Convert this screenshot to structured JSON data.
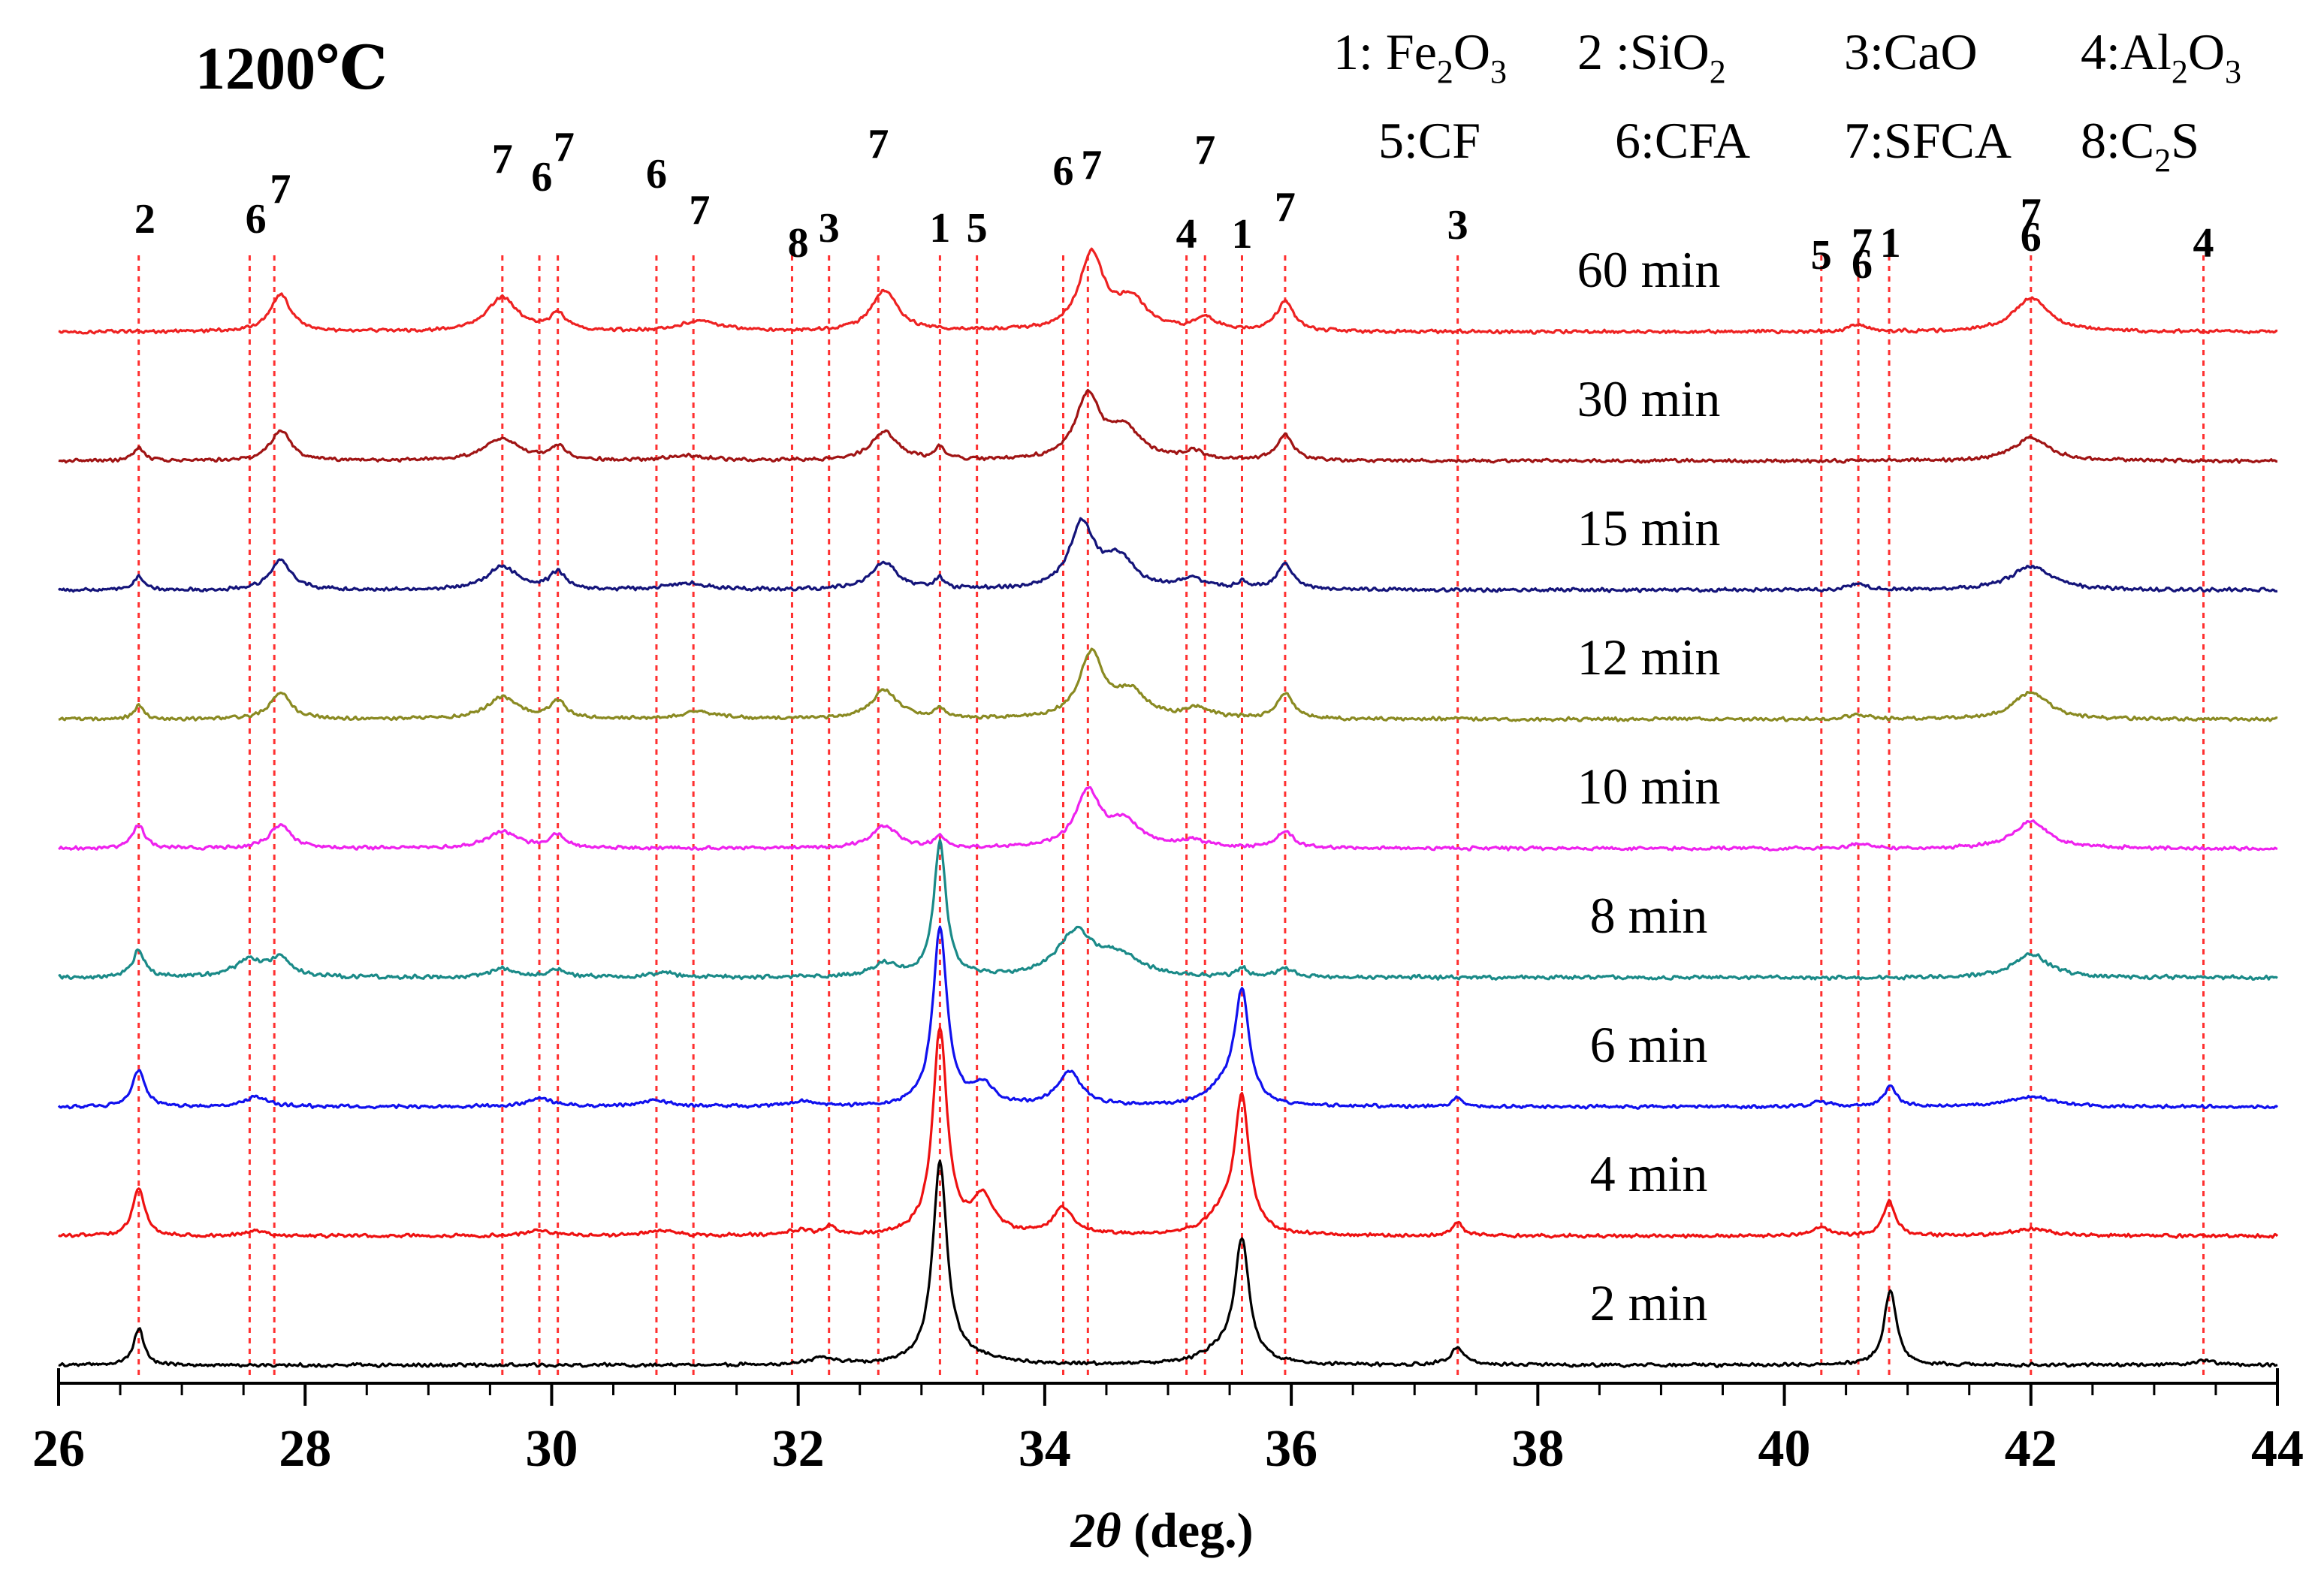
{
  "chart_data": {
    "type": "line",
    "title": "1200℃",
    "xlabel_italic": "2θ",
    "xlabel_rest": " (deg.)",
    "xlim": [
      26,
      44
    ],
    "xticks": [
      26,
      28,
      30,
      32,
      34,
      36,
      38,
      40,
      42,
      44
    ],
    "legend": {
      "row1": [
        {
          "key": "1: ",
          "parts": [
            [
              "Fe",
              "n"
            ],
            [
              "2",
              "sub"
            ],
            [
              "O",
              "n"
            ],
            [
              "3",
              "sub"
            ]
          ]
        },
        {
          "key": "2 :",
          "parts": [
            [
              "SiO",
              "n"
            ],
            [
              "2",
              "sub"
            ]
          ]
        },
        {
          "key": "3:",
          "parts": [
            [
              "CaO",
              "n"
            ]
          ]
        },
        {
          "key": "4:",
          "parts": [
            [
              "Al",
              "n"
            ],
            [
              "2",
              "sub"
            ],
            [
              "O",
              "n"
            ],
            [
              "3",
              "sub"
            ]
          ]
        }
      ],
      "row2": [
        {
          "key": "5:",
          "parts": [
            [
              "CF",
              "n"
            ]
          ]
        },
        {
          "key": "6:",
          "parts": [
            [
              "CFA",
              "n"
            ]
          ]
        },
        {
          "key": "7:",
          "parts": [
            [
              "SFCA",
              "n"
            ]
          ]
        },
        {
          "key": "8:",
          "parts": [
            [
              "C",
              "n"
            ],
            [
              "2",
              "sub"
            ],
            [
              "S",
              "n"
            ]
          ]
        }
      ]
    },
    "reference_lines": [
      26.65,
      27.55,
      27.75,
      29.6,
      29.9,
      30.05,
      30.85,
      31.15,
      31.95,
      32.25,
      32.65,
      33.15,
      33.45,
      34.15,
      34.35,
      35.15,
      35.3,
      35.6,
      35.95,
      37.35,
      40.3,
      40.6,
      40.85,
      42.0,
      43.4
    ],
    "peak_labels": [
      {
        "text": "2",
        "x": 26.7,
        "level": 3
      },
      {
        "text": "6",
        "x": 27.6,
        "level": 3
      },
      {
        "text": "7",
        "x": 27.8,
        "level": 2
      },
      {
        "text": "7",
        "x": 29.6,
        "level": 1
      },
      {
        "text": "6",
        "x": 29.92,
        "level": 1.6
      },
      {
        "text": "7",
        "x": 30.1,
        "level": 0.6
      },
      {
        "text": "6",
        "x": 30.85,
        "level": 1.5
      },
      {
        "text": "7",
        "x": 31.2,
        "level": 2.7
      },
      {
        "text": "8",
        "x": 32.0,
        "level": 3.8
      },
      {
        "text": "3",
        "x": 32.25,
        "level": 3.3
      },
      {
        "text": "7",
        "x": 32.65,
        "level": 0.5
      },
      {
        "text": "1",
        "x": 33.15,
        "level": 3.3
      },
      {
        "text": "5",
        "x": 33.45,
        "level": 3.3
      },
      {
        "text": "6",
        "x": 34.15,
        "level": 1.4
      },
      {
        "text": "7",
        "x": 34.38,
        "level": 1.2
      },
      {
        "text": "7",
        "x": 35.3,
        "level": 0.7
      },
      {
        "text": "4",
        "x": 35.15,
        "level": 3.5
      },
      {
        "text": "1",
        "x": 35.6,
        "level": 3.5
      },
      {
        "text": "7",
        "x": 35.95,
        "level": 2.6
      },
      {
        "text": "3",
        "x": 37.35,
        "level": 3.2
      },
      {
        "text": "5",
        "x": 40.3,
        "level": 4.2
      },
      {
        "text": "7",
        "x": 40.63,
        "level": 3.8
      },
      {
        "text": "6",
        "x": 40.63,
        "level": 4.5
      },
      {
        "text": "1",
        "x": 40.86,
        "level": 3.8
      },
      {
        "text": "7",
        "x": 42.0,
        "level": 2.8
      },
      {
        "text": "6",
        "x": 42.0,
        "level": 3.6
      },
      {
        "text": "4",
        "x": 43.4,
        "level": 3.8
      }
    ],
    "series": [
      {
        "name": "2 min",
        "color": "#000000",
        "noise": 0.012,
        "seed": 2,
        "peaks": [
          [
            26.65,
            0.22,
            0.05
          ],
          [
            32.2,
            0.04,
            0.12
          ],
          [
            33.15,
            1.18,
            0.07
          ],
          [
            33.4,
            0.04,
            0.3
          ],
          [
            35.6,
            0.7,
            0.07
          ],
          [
            35.45,
            0.08,
            0.2
          ],
          [
            37.35,
            0.1,
            0.07
          ],
          [
            40.86,
            0.45,
            0.06
          ],
          [
            43.4,
            0.03,
            0.1
          ]
        ]
      },
      {
        "name": "4 min",
        "color": "#ee1111",
        "noise": 0.012,
        "seed": 4,
        "peaks": [
          [
            26.65,
            0.28,
            0.06
          ],
          [
            27.6,
            0.03,
            0.1
          ],
          [
            29.9,
            0.03,
            0.12
          ],
          [
            30.9,
            0.03,
            0.15
          ],
          [
            32.0,
            0.03,
            0.12
          ],
          [
            32.25,
            0.05,
            0.05
          ],
          [
            33.15,
            1.22,
            0.07
          ],
          [
            33.5,
            0.22,
            0.1
          ],
          [
            34.15,
            0.16,
            0.1
          ],
          [
            35.6,
            0.78,
            0.07
          ],
          [
            35.45,
            0.12,
            0.15
          ],
          [
            37.35,
            0.08,
            0.05
          ],
          [
            40.3,
            0.05,
            0.08
          ],
          [
            40.85,
            0.2,
            0.06
          ],
          [
            42.0,
            0.04,
            0.2
          ]
        ]
      },
      {
        "name": "6 min",
        "color": "#1111ee",
        "noise": 0.012,
        "seed": 6,
        "peaks": [
          [
            26.65,
            0.22,
            0.06
          ],
          [
            27.6,
            0.06,
            0.12
          ],
          [
            29.9,
            0.05,
            0.12
          ],
          [
            30.85,
            0.04,
            0.12
          ],
          [
            32.05,
            0.03,
            0.12
          ],
          [
            33.15,
            1.05,
            0.07
          ],
          [
            33.5,
            0.12,
            0.1
          ],
          [
            34.2,
            0.2,
            0.12
          ],
          [
            35.6,
            0.65,
            0.07
          ],
          [
            35.45,
            0.1,
            0.15
          ],
          [
            37.35,
            0.05,
            0.05
          ],
          [
            40.3,
            0.03,
            0.08
          ],
          [
            40.86,
            0.12,
            0.06
          ],
          [
            42.0,
            0.06,
            0.2
          ]
        ]
      },
      {
        "name": "8 min",
        "color": "#1a8a88",
        "noise": 0.014,
        "seed": 8,
        "peaks": [
          [
            26.65,
            0.16,
            0.06
          ],
          [
            27.55,
            0.1,
            0.15
          ],
          [
            27.8,
            0.1,
            0.1
          ],
          [
            29.6,
            0.05,
            0.12
          ],
          [
            30.05,
            0.05,
            0.08
          ],
          [
            30.9,
            0.03,
            0.12
          ],
          [
            32.7,
            0.08,
            0.12
          ],
          [
            33.15,
            0.8,
            0.06
          ],
          [
            34.25,
            0.26,
            0.17
          ],
          [
            34.6,
            0.12,
            0.2
          ],
          [
            35.6,
            0.05,
            0.05
          ],
          [
            35.95,
            0.05,
            0.08
          ],
          [
            42.0,
            0.14,
            0.17
          ]
        ]
      },
      {
        "name": "10 min",
        "color": "#ee22ee",
        "noise": 0.012,
        "seed": 10,
        "peaks": [
          [
            26.65,
            0.14,
            0.06
          ],
          [
            27.8,
            0.14,
            0.1
          ],
          [
            29.6,
            0.1,
            0.15
          ],
          [
            30.05,
            0.08,
            0.08
          ],
          [
            32.7,
            0.13,
            0.13
          ],
          [
            33.15,
            0.07,
            0.05
          ],
          [
            34.35,
            0.33,
            0.12
          ],
          [
            34.65,
            0.15,
            0.15
          ],
          [
            35.2,
            0.04,
            0.15
          ],
          [
            35.95,
            0.1,
            0.08
          ],
          [
            40.6,
            0.03,
            0.08
          ],
          [
            42.0,
            0.16,
            0.17
          ]
        ]
      },
      {
        "name": "12 min",
        "color": "#8a8a22",
        "noise": 0.012,
        "seed": 12,
        "peaks": [
          [
            26.65,
            0.09,
            0.04
          ],
          [
            27.8,
            0.16,
            0.1
          ],
          [
            29.6,
            0.13,
            0.15
          ],
          [
            30.05,
            0.1,
            0.08
          ],
          [
            31.2,
            0.04,
            0.2
          ],
          [
            32.7,
            0.17,
            0.13
          ],
          [
            33.15,
            0.06,
            0.05
          ],
          [
            34.38,
            0.38,
            0.12
          ],
          [
            34.7,
            0.15,
            0.15
          ],
          [
            35.25,
            0.06,
            0.12
          ],
          [
            35.95,
            0.15,
            0.08
          ],
          [
            40.6,
            0.03,
            0.08
          ],
          [
            42.0,
            0.16,
            0.17
          ]
        ]
      },
      {
        "name": "15 min",
        "color": "#14147a",
        "noise": 0.013,
        "seed": 15,
        "peaks": [
          [
            26.65,
            0.08,
            0.05
          ],
          [
            27.8,
            0.18,
            0.1
          ],
          [
            29.6,
            0.14,
            0.15
          ],
          [
            30.05,
            0.1,
            0.08
          ],
          [
            31.1,
            0.04,
            0.2
          ],
          [
            32.7,
            0.16,
            0.13
          ],
          [
            33.15,
            0.06,
            0.05
          ],
          [
            34.3,
            0.38,
            0.12
          ],
          [
            34.6,
            0.18,
            0.15
          ],
          [
            35.2,
            0.06,
            0.12
          ],
          [
            35.6,
            0.04,
            0.05
          ],
          [
            35.95,
            0.15,
            0.08
          ],
          [
            40.6,
            0.04,
            0.08
          ],
          [
            42.0,
            0.14,
            0.2
          ]
        ]
      },
      {
        "name": "30 min",
        "color": "#a01414",
        "noise": 0.012,
        "seed": 30,
        "peaks": [
          [
            26.65,
            0.08,
            0.05
          ],
          [
            27.8,
            0.18,
            0.1
          ],
          [
            29.6,
            0.13,
            0.17
          ],
          [
            30.05,
            0.08,
            0.08
          ],
          [
            31.1,
            0.03,
            0.2
          ],
          [
            32.7,
            0.17,
            0.13
          ],
          [
            33.15,
            0.07,
            0.05
          ],
          [
            34.35,
            0.38,
            0.12
          ],
          [
            34.65,
            0.18,
            0.15
          ],
          [
            35.2,
            0.05,
            0.1
          ],
          [
            35.95,
            0.15,
            0.08
          ],
          [
            42.0,
            0.14,
            0.17
          ]
        ]
      },
      {
        "name": "60 min",
        "color": "#ee2222",
        "noise": 0.012,
        "seed": 60,
        "peaks": [
          [
            27.8,
            0.22,
            0.1
          ],
          [
            29.6,
            0.2,
            0.15
          ],
          [
            30.05,
            0.1,
            0.08
          ],
          [
            31.2,
            0.06,
            0.2
          ],
          [
            32.7,
            0.24,
            0.13
          ],
          [
            34.38,
            0.45,
            0.12
          ],
          [
            34.7,
            0.18,
            0.15
          ],
          [
            35.3,
            0.08,
            0.1
          ],
          [
            35.95,
            0.18,
            0.08
          ],
          [
            40.6,
            0.04,
            0.08
          ],
          [
            42.0,
            0.2,
            0.17
          ]
        ]
      }
    ]
  }
}
